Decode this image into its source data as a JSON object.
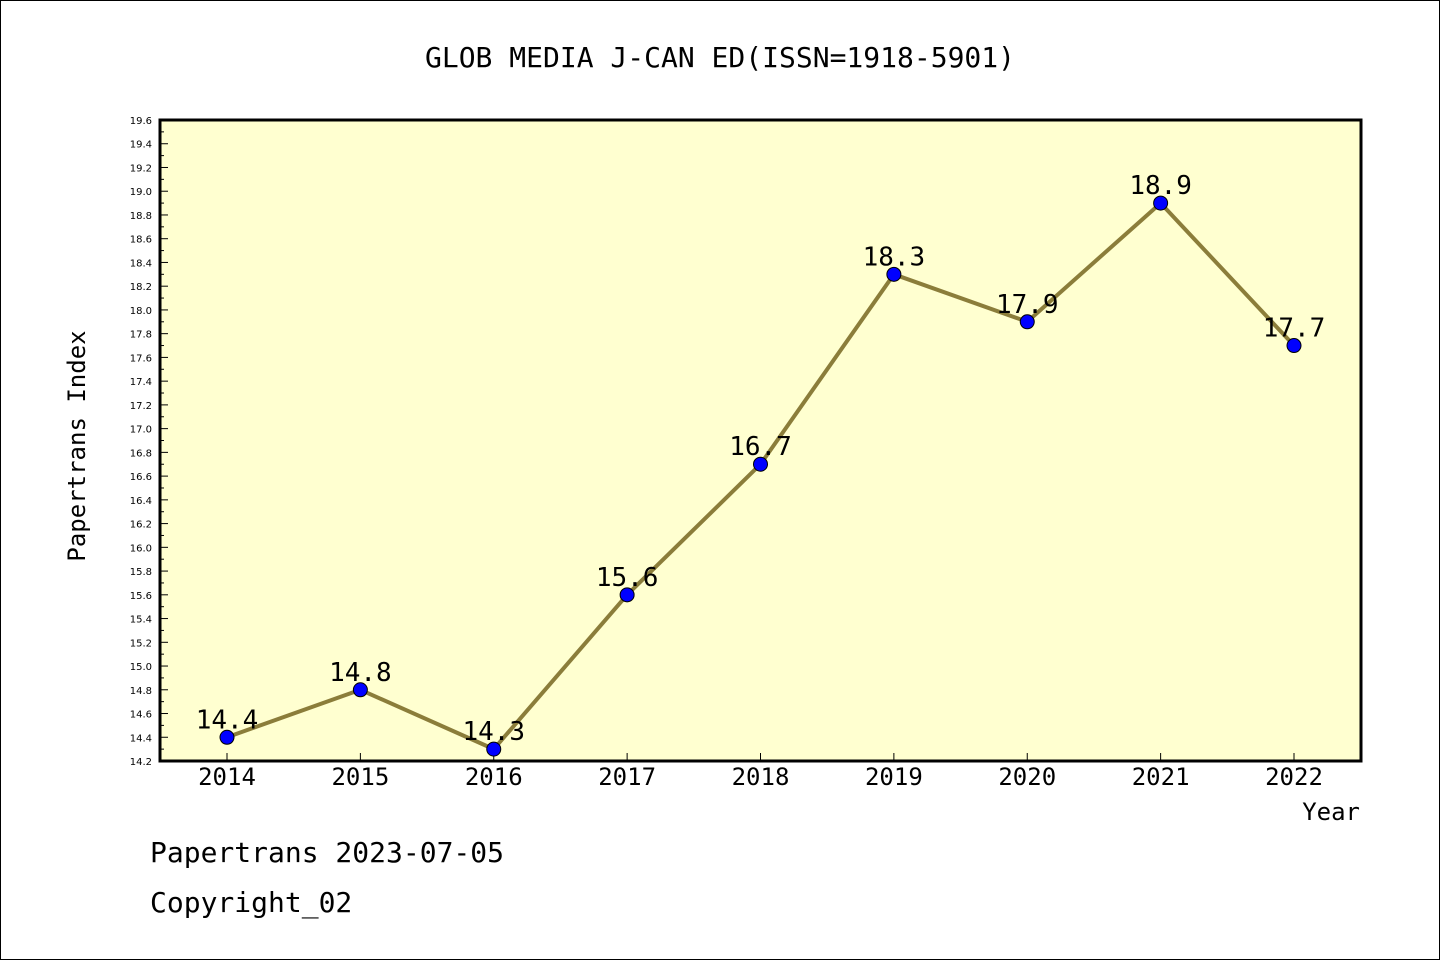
{
  "chart_data": {
    "type": "line",
    "title": "GLOB MEDIA J-CAN ED(ISSN=1918-5901)",
    "xlabel": "Year",
    "ylabel": "Papertrans Index",
    "categories": [
      "2014",
      "2015",
      "2016",
      "2017",
      "2018",
      "2019",
      "2020",
      "2021",
      "2022"
    ],
    "series": [
      {
        "values": [
          14.4,
          14.8,
          14.3,
          15.6,
          16.7,
          18.3,
          17.9,
          18.9,
          17.7
        ],
        "labels": [
          "14.4",
          "14.8",
          "14.3",
          "15.6",
          "16.7",
          "18.3",
          "17.9",
          "18.9",
          "17.7"
        ]
      }
    ],
    "ylim": [
      14.2,
      19.6
    ],
    "ytick_step": 0.2,
    "grid": false,
    "legend": "none",
    "colors": {
      "plot_background": "#ffffd0",
      "line": "#8b7d3a",
      "marker": "#0000ff"
    }
  },
  "footer": {
    "line1": "Papertrans 2023-07-05",
    "line2": "Copyright_02"
  }
}
